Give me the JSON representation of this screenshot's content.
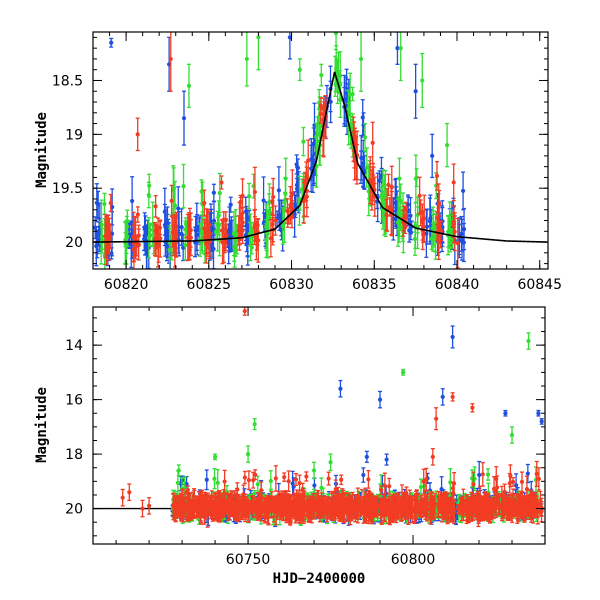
{
  "colors": {
    "blue": "#1f4fe0",
    "green": "#33dd33",
    "red": "#f23c23",
    "model": "#000000"
  },
  "chart_data": [
    {
      "type": "scatter",
      "title": "",
      "xlabel": "",
      "ylabel": "Magnitude",
      "xlim": [
        60818,
        60845.5
      ],
      "ylim": [
        20.25,
        18.05
      ],
      "y_inverted": true,
      "x_ticks": [
        60820,
        60825,
        60830,
        60835,
        60840,
        60845
      ],
      "x_tick_labels": [
        "60820",
        "60825",
        "60830",
        "60835",
        "60840",
        "60845"
      ],
      "y_ticks": [
        18.5,
        19,
        19.5,
        20
      ],
      "y_tick_labels": [
        "18.5",
        "19",
        "19.5",
        "20"
      ],
      "model_curve": {
        "baseline": 20.0,
        "peak_x": 60832.6,
        "peak_mag": 18.42,
        "x": [
          60818,
          60824,
          60827,
          60829,
          60830.5,
          60831.5,
          60832.2,
          60832.6,
          60833.2,
          60834,
          60835.5,
          60837.5,
          60840,
          60843,
          60845.5
        ],
        "y": [
          20.0,
          19.99,
          19.96,
          19.88,
          19.66,
          19.25,
          18.72,
          18.42,
          18.73,
          19.27,
          19.68,
          19.87,
          19.95,
          19.99,
          20.0
        ]
      },
      "series": [
        {
          "color_key": "blue",
          "visits": [
            60818.3,
            60819.0,
            60820.3,
            60821.2,
            60822.5,
            60823.3,
            60824.3,
            60825.2,
            60826.3,
            60827.3,
            60828.3,
            60829.3,
            60830.3,
            60831.3,
            60832.2,
            60833.3,
            60834.3,
            60835.3,
            60836.3,
            60837.2,
            60838.3,
            60839.0,
            60839.7,
            60840.3
          ],
          "outliers": [
            [
              60819.1,
              18.15,
              0.04
            ],
            [
              60822.6,
              18.35,
              0.25
            ],
            [
              60823.5,
              18.85,
              0.25
            ],
            [
              60829.9,
              18.1,
              0.2
            ],
            [
              60836.4,
              18.2,
              0.15
            ],
            [
              60837.5,
              18.6,
              0.25
            ],
            [
              60838.5,
              19.2,
              0.2
            ]
          ]
        },
        {
          "color_key": "green",
          "visits": [
            60818.6,
            60820.0,
            60821.5,
            60822.8,
            60823.6,
            60824.6,
            60825.6,
            60826.6,
            60827.6,
            60828.6,
            60829.6,
            60830.6,
            60831.6,
            60832.8,
            60833.6,
            60834.6,
            60835.6,
            60836.6,
            60837.6,
            60838.6,
            60839.6
          ],
          "outliers": [
            [
              60823.8,
              18.55,
              0.2
            ],
            [
              60827.3,
              18.3,
              0.25
            ],
            [
              60828.0,
              18.1,
              0.3
            ],
            [
              60830.5,
              18.4,
              0.1
            ],
            [
              60831.8,
              18.45,
              0.1
            ],
            [
              60834.2,
              18.3,
              0.3
            ],
            [
              60836.6,
              18.2,
              0.3
            ],
            [
              60837.9,
              18.5,
              0.25
            ],
            [
              60839.4,
              19.1,
              0.2
            ]
          ]
        },
        {
          "color_key": "red",
          "visits": [
            60818.9,
            60820.6,
            60821.9,
            60822.9,
            60823.9,
            60824.9,
            60825.9,
            60826.9,
            60827.9,
            60828.9,
            60829.9,
            60830.9,
            60831.9,
            60833.9,
            60834.9,
            60835.9,
            60836.9,
            60837.9,
            60838.9,
            60839.9
          ],
          "outliers": [
            [
              60822.7,
              18.3,
              0.3
            ],
            [
              60820.7,
              19.0,
              0.15
            ]
          ]
        }
      ]
    },
    {
      "type": "scatter",
      "title": "",
      "xlabel": "HJD−2400000",
      "ylabel": "Magnitude",
      "xlim": [
        60703,
        60840
      ],
      "ylim": [
        21.3,
        12.6
      ],
      "y_inverted": true,
      "x_ticks": [
        60750,
        60800
      ],
      "x_tick_labels": [
        "60750",
        "60800"
      ],
      "y_ticks": [
        14,
        16,
        18,
        20
      ],
      "y_tick_labels": [
        "14",
        "16",
        "18",
        "20"
      ],
      "baseline": 20.0,
      "early_points": [
        [
          60712,
          19.6,
          0.3,
          "red"
        ],
        [
          60714,
          19.4,
          0.3,
          "red"
        ],
        [
          60718,
          20.0,
          0.3,
          "red"
        ],
        [
          60720,
          19.9,
          0.3,
          "red"
        ]
      ],
      "spread_range": [
        60727,
        60839
      ],
      "outliers": [
        [
          60749,
          12.75,
          0.15,
          "red"
        ],
        [
          60778,
          15.6,
          0.3,
          "blue"
        ],
        [
          60790,
          16.0,
          0.3,
          "blue"
        ],
        [
          60797,
          15.0,
          0.1,
          "green"
        ],
        [
          60812,
          13.7,
          0.4,
          "blue"
        ],
        [
          60809,
          15.9,
          0.3,
          "blue"
        ],
        [
          60812,
          15.9,
          0.15,
          "red"
        ],
        [
          60807,
          16.7,
          0.4,
          "red"
        ],
        [
          60806,
          18.1,
          0.3,
          "red"
        ],
        [
          60818,
          16.3,
          0.15,
          "red"
        ],
        [
          60828,
          16.5,
          0.1,
          "blue"
        ],
        [
          60835,
          13.85,
          0.3,
          "green"
        ],
        [
          60838,
          16.5,
          0.1,
          "blue"
        ],
        [
          60839,
          16.8,
          0.1,
          "blue"
        ],
        [
          60752,
          16.9,
          0.2,
          "green"
        ],
        [
          60750,
          18.0,
          0.3,
          "green"
        ],
        [
          60740,
          18.1,
          0.1,
          "green"
        ],
        [
          60729,
          18.6,
          0.2,
          "green"
        ],
        [
          60770,
          18.6,
          0.3,
          "green"
        ],
        [
          60775,
          18.3,
          0.3,
          "green"
        ],
        [
          60786,
          18.1,
          0.2,
          "blue"
        ],
        [
          60792,
          18.2,
          0.2,
          "blue"
        ],
        [
          60830,
          17.3,
          0.3,
          "green"
        ]
      ]
    }
  ]
}
